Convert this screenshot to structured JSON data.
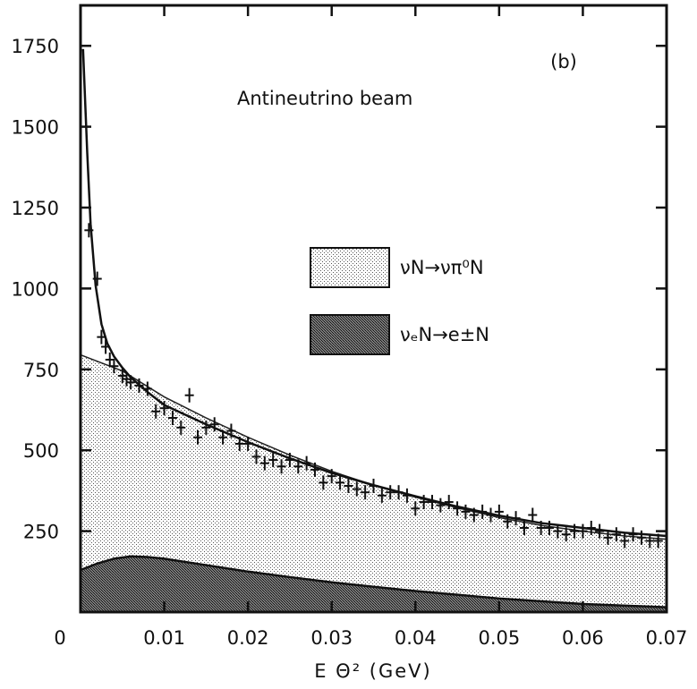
{
  "chart_data": {
    "type": "area",
    "panel_label": "(b)",
    "title": "Antineutrino beam",
    "xlabel": "E Θ² (GeV)",
    "ylabel": "",
    "xlim": [
      0,
      0.07
    ],
    "ylim": [
      0,
      1875
    ],
    "x_ticks": [
      "0",
      "0.01",
      "0.02",
      "0.03",
      "0.04",
      "0.05",
      "0.06",
      "0.07"
    ],
    "y_ticks": [
      "250",
      "500",
      "750",
      "1000",
      "1250",
      "1500",
      "1750"
    ],
    "legend_position": "center-right",
    "legend": [
      {
        "label": "νN→νπ⁰N",
        "pattern": "light-stipple"
      },
      {
        "label": "νₑN→e±N",
        "pattern": "dark-stipple"
      }
    ],
    "series": [
      {
        "name": "νₑN→e±N",
        "style": "dark-stipple-area",
        "x": [
          0,
          0.002,
          0.004,
          0.006,
          0.008,
          0.01,
          0.015,
          0.02,
          0.025,
          0.03,
          0.035,
          0.04,
          0.05,
          0.06,
          0.07
        ],
        "values": [
          130,
          150,
          165,
          172,
          170,
          165,
          145,
          125,
          108,
          92,
          78,
          65,
          42,
          25,
          15
        ]
      },
      {
        "name": "νN→νπ⁰N",
        "style": "light-stipple-area",
        "x": [
          0,
          0.005,
          0.01,
          0.015,
          0.02,
          0.025,
          0.03,
          0.035,
          0.04,
          0.045,
          0.05,
          0.055,
          0.06,
          0.065,
          0.07
        ],
        "values": [
          795,
          745,
          665,
          600,
          540,
          485,
          435,
          392,
          355,
          322,
          292,
          268,
          250,
          235,
          225
        ]
      },
      {
        "name": "fit",
        "style": "line",
        "x": [
          0.0003,
          0.0008,
          0.0012,
          0.0018,
          0.0025,
          0.0032,
          0.004,
          0.005,
          0.006,
          0.008,
          0.01,
          0.015,
          0.02,
          0.025,
          0.03,
          0.035,
          0.04,
          0.045,
          0.05,
          0.055,
          0.06,
          0.065,
          0.07
        ],
        "values": [
          1740,
          1420,
          1200,
          1010,
          890,
          830,
          790,
          755,
          725,
          680,
          640,
          580,
          525,
          475,
          430,
          392,
          358,
          326,
          298,
          275,
          260,
          245,
          235
        ]
      },
      {
        "name": "data",
        "style": "crosses",
        "x": [
          0.001,
          0.002,
          0.0025,
          0.003,
          0.0035,
          0.004,
          0.005,
          0.0055,
          0.006,
          0.007,
          0.008,
          0.009,
          0.01,
          0.011,
          0.012,
          0.013,
          0.014,
          0.015,
          0.016,
          0.017,
          0.018,
          0.019,
          0.02,
          0.021,
          0.022,
          0.023,
          0.024,
          0.025,
          0.026,
          0.027,
          0.028,
          0.029,
          0.03,
          0.031,
          0.032,
          0.033,
          0.034,
          0.035,
          0.036,
          0.037,
          0.038,
          0.039,
          0.04,
          0.041,
          0.042,
          0.043,
          0.044,
          0.045,
          0.046,
          0.047,
          0.048,
          0.049,
          0.05,
          0.051,
          0.052,
          0.053,
          0.054,
          0.055,
          0.056,
          0.057,
          0.058,
          0.059,
          0.06,
          0.061,
          0.062,
          0.063,
          0.064,
          0.065,
          0.066,
          0.067,
          0.068,
          0.069
        ],
        "values": [
          1180,
          1030,
          850,
          820,
          780,
          760,
          730,
          720,
          710,
          700,
          690,
          620,
          630,
          600,
          570,
          670,
          540,
          570,
          580,
          540,
          560,
          520,
          520,
          480,
          460,
          470,
          450,
          470,
          450,
          460,
          440,
          400,
          420,
          400,
          390,
          380,
          370,
          390,
          360,
          370,
          370,
          360,
          320,
          340,
          340,
          330,
          340,
          320,
          310,
          300,
          310,
          300,
          310,
          280,
          290,
          260,
          300,
          260,
          260,
          250,
          240,
          250,
          250,
          260,
          250,
          230,
          240,
          220,
          240,
          230,
          220,
          220
        ]
      }
    ]
  }
}
